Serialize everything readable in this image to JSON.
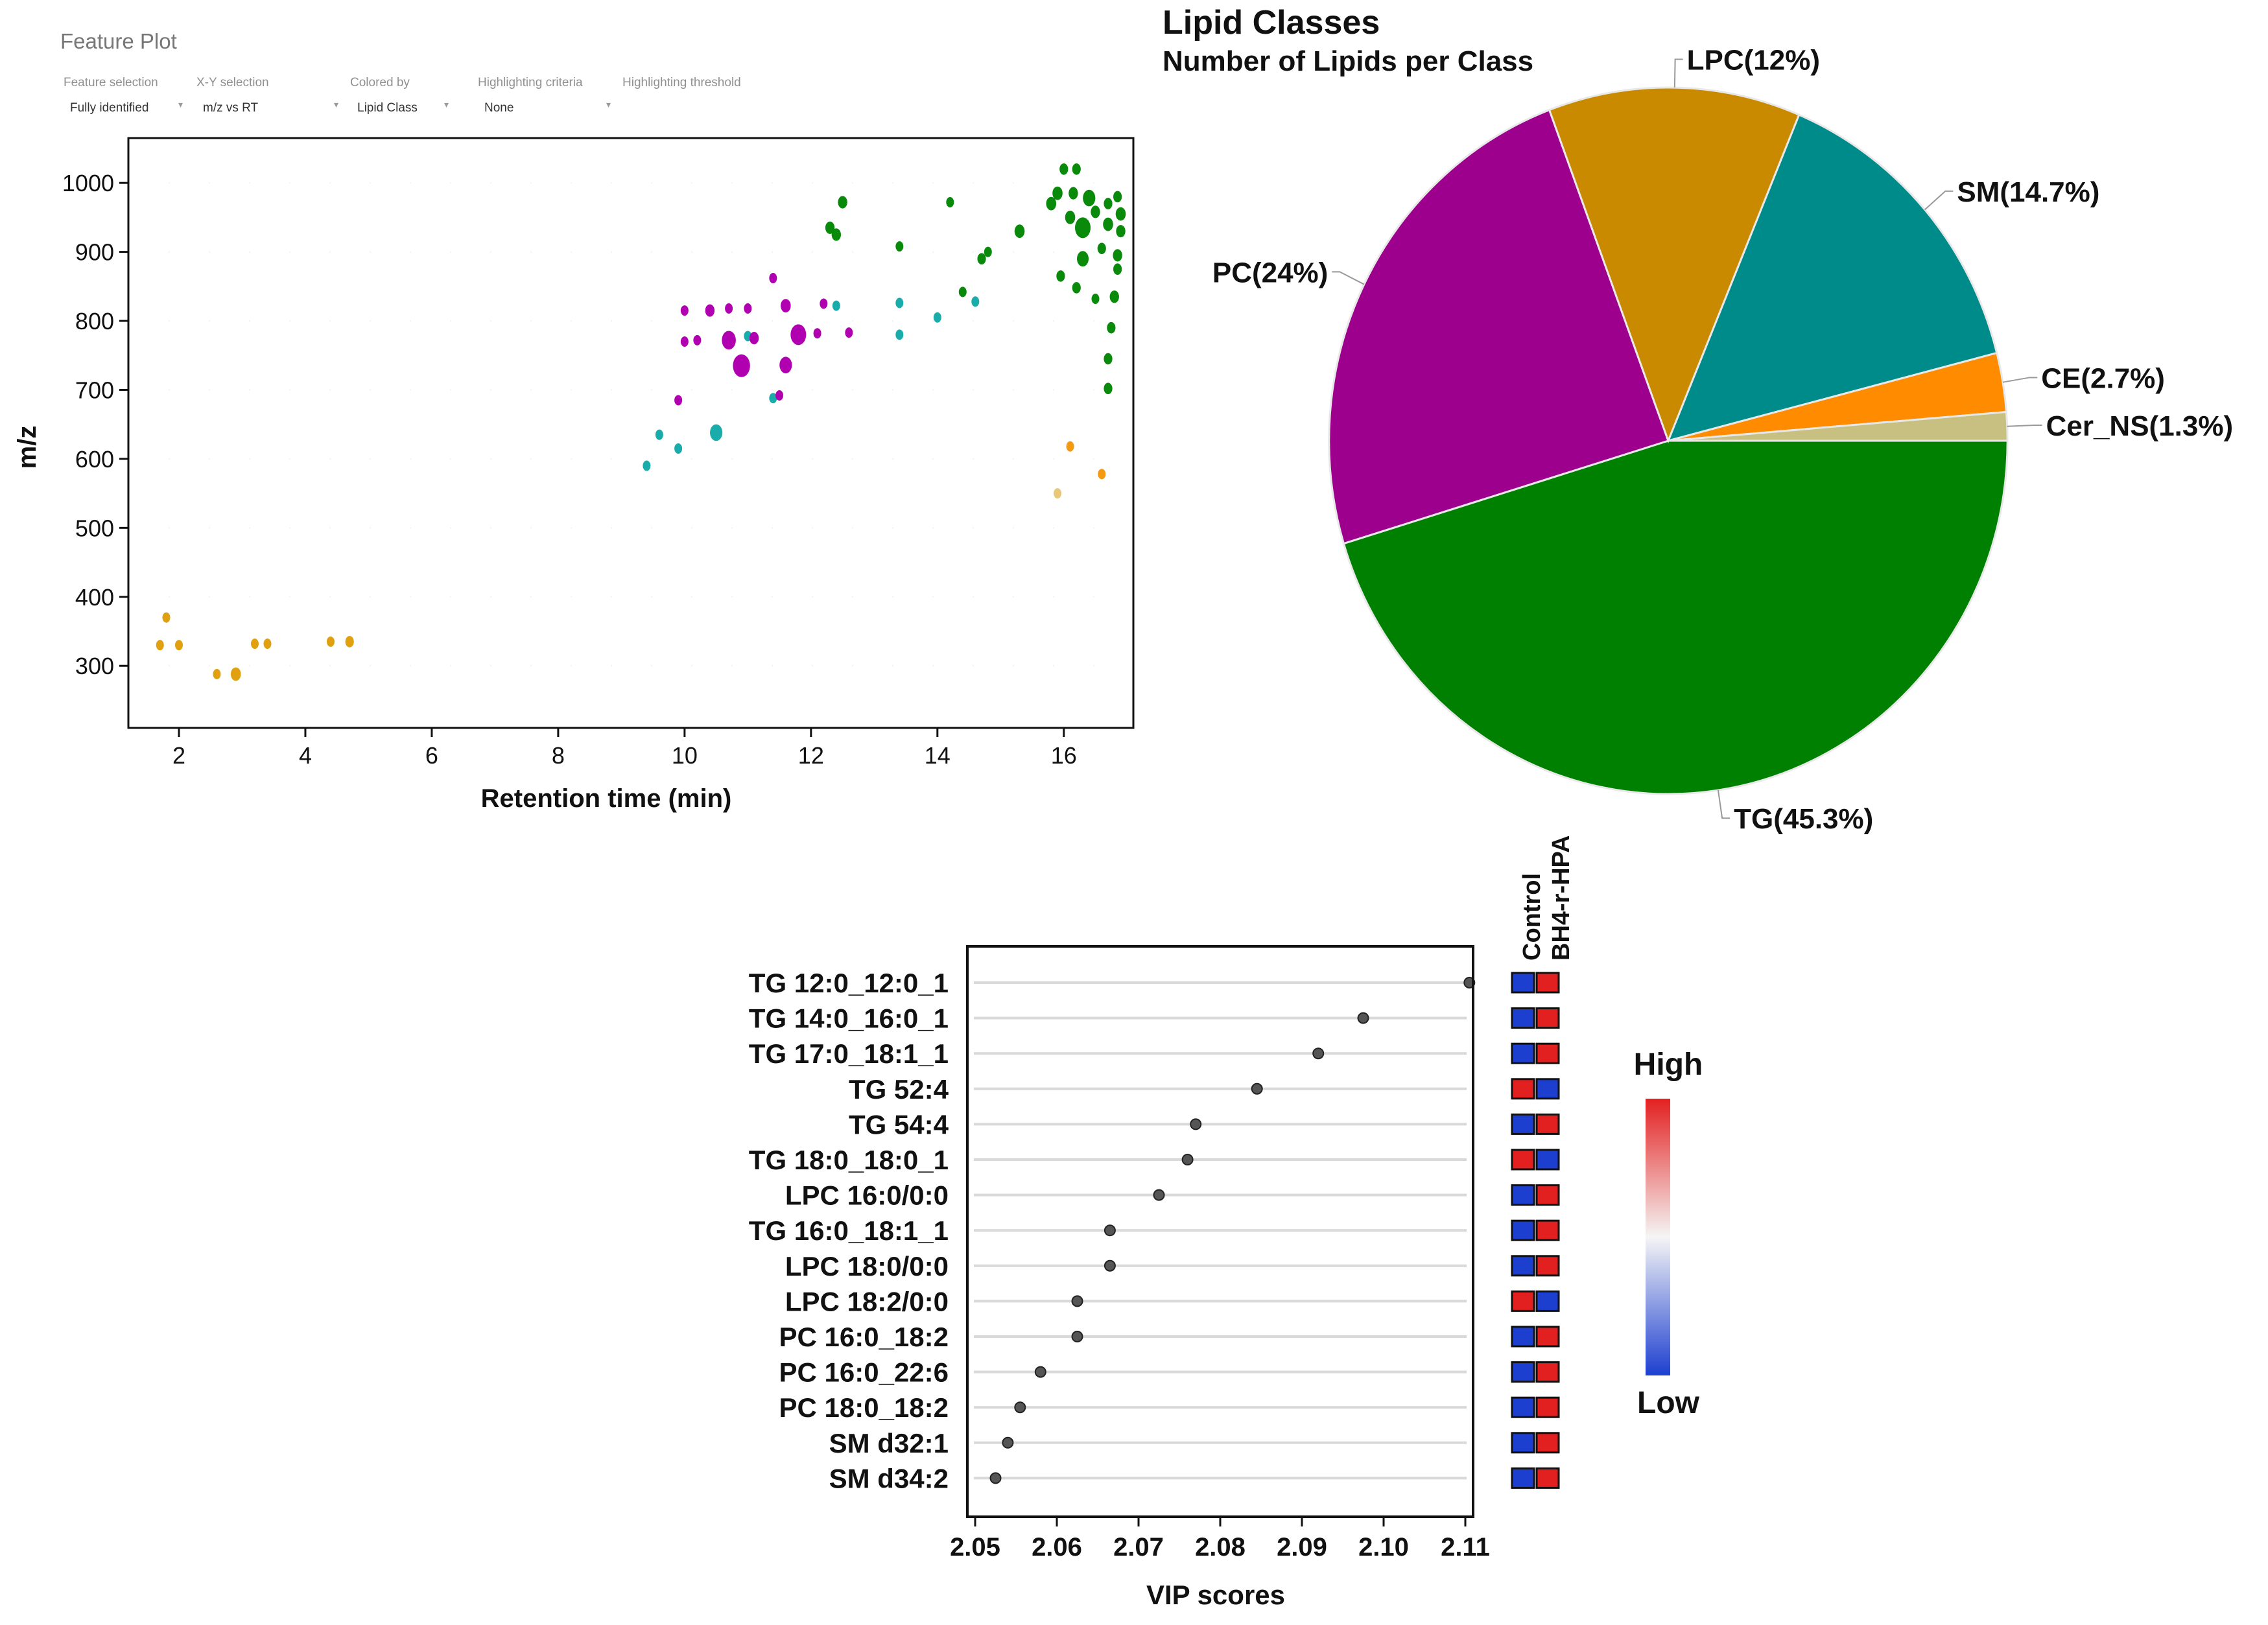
{
  "feature_plot": {
    "title": "Feature Plot",
    "controls": [
      {
        "label": "Feature selection",
        "value": "Fully identified"
      },
      {
        "label": "X-Y selection",
        "value": "m/z vs RT"
      },
      {
        "label": "Colored by",
        "value": "Lipid Class"
      },
      {
        "label": "Highlighting criteria",
        "value": "None"
      },
      {
        "label": "Highlighting threshold",
        "value": ""
      }
    ]
  },
  "chart_data": [
    {
      "type": "scatter",
      "title": "Feature Plot",
      "xlabel": "Retention time (min)",
      "ylabel": "m/z",
      "xlim": [
        1.2,
        17.1
      ],
      "ylim": [
        210,
        1065
      ],
      "xticks": [
        2,
        4,
        6,
        8,
        10,
        12,
        14,
        16
      ],
      "yticks": [
        300,
        400,
        500,
        600,
        700,
        800,
        900,
        1000
      ],
      "color_key": "Lipid Class",
      "class_colors": {
        "TG": "#0a8a0a",
        "PC": "#b000b0",
        "SM": "#1aabab",
        "LPC": "#e0a010",
        "CE": "#f59a10",
        "Cer_NS": "#e8c878"
      },
      "points": [
        {
          "x": 1.8,
          "y": 370,
          "c": "LPC",
          "s": 1
        },
        {
          "x": 1.7,
          "y": 330,
          "c": "LPC",
          "s": 1
        },
        {
          "x": 2.0,
          "y": 330,
          "c": "LPC",
          "s": 1
        },
        {
          "x": 2.6,
          "y": 288,
          "c": "LPC",
          "s": 1
        },
        {
          "x": 2.9,
          "y": 288,
          "c": "LPC",
          "s": 1.3
        },
        {
          "x": 3.2,
          "y": 332,
          "c": "LPC",
          "s": 1
        },
        {
          "x": 3.4,
          "y": 332,
          "c": "LPC",
          "s": 1
        },
        {
          "x": 4.4,
          "y": 335,
          "c": "LPC",
          "s": 1
        },
        {
          "x": 4.7,
          "y": 335,
          "c": "LPC",
          "s": 1.1
        },
        {
          "x": 9.4,
          "y": 590,
          "c": "SM",
          "s": 1
        },
        {
          "x": 9.6,
          "y": 635,
          "c": "SM",
          "s": 1
        },
        {
          "x": 9.9,
          "y": 615,
          "c": "SM",
          "s": 1
        },
        {
          "x": 10.5,
          "y": 638,
          "c": "SM",
          "s": 1.6
        },
        {
          "x": 11.0,
          "y": 778,
          "c": "SM",
          "s": 1
        },
        {
          "x": 11.4,
          "y": 688,
          "c": "SM",
          "s": 1
        },
        {
          "x": 12.4,
          "y": 822,
          "c": "SM",
          "s": 1
        },
        {
          "x": 13.4,
          "y": 826,
          "c": "SM",
          "s": 1
        },
        {
          "x": 13.4,
          "y": 780,
          "c": "SM",
          "s": 1
        },
        {
          "x": 14.0,
          "y": 805,
          "c": "SM",
          "s": 1
        },
        {
          "x": 14.6,
          "y": 828,
          "c": "SM",
          "s": 1
        },
        {
          "x": 9.9,
          "y": 685,
          "c": "PC",
          "s": 1
        },
        {
          "x": 10.0,
          "y": 815,
          "c": "PC",
          "s": 1
        },
        {
          "x": 10.0,
          "y": 770,
          "c": "PC",
          "s": 1
        },
        {
          "x": 10.2,
          "y": 772,
          "c": "PC",
          "s": 1
        },
        {
          "x": 10.4,
          "y": 815,
          "c": "PC",
          "s": 1.2
        },
        {
          "x": 10.7,
          "y": 818,
          "c": "PC",
          "s": 1
        },
        {
          "x": 10.7,
          "y": 772,
          "c": "PC",
          "s": 1.8
        },
        {
          "x": 10.9,
          "y": 735,
          "c": "PC",
          "s": 2.2
        },
        {
          "x": 11.0,
          "y": 818,
          "c": "PC",
          "s": 1
        },
        {
          "x": 11.1,
          "y": 775,
          "c": "PC",
          "s": 1.2
        },
        {
          "x": 11.4,
          "y": 862,
          "c": "PC",
          "s": 1
        },
        {
          "x": 11.5,
          "y": 692,
          "c": "PC",
          "s": 1
        },
        {
          "x": 11.6,
          "y": 822,
          "c": "PC",
          "s": 1.3
        },
        {
          "x": 11.6,
          "y": 736,
          "c": "PC",
          "s": 1.6
        },
        {
          "x": 11.8,
          "y": 780,
          "c": "PC",
          "s": 2
        },
        {
          "x": 12.1,
          "y": 782,
          "c": "PC",
          "s": 1
        },
        {
          "x": 12.2,
          "y": 825,
          "c": "PC",
          "s": 1
        },
        {
          "x": 12.6,
          "y": 783,
          "c": "PC",
          "s": 1
        },
        {
          "x": 12.3,
          "y": 935,
          "c": "TG",
          "s": 1.2
        },
        {
          "x": 12.4,
          "y": 925,
          "c": "TG",
          "s": 1.2
        },
        {
          "x": 12.5,
          "y": 972,
          "c": "TG",
          "s": 1.2
        },
        {
          "x": 13.4,
          "y": 908,
          "c": "TG",
          "s": 1
        },
        {
          "x": 14.2,
          "y": 972,
          "c": "TG",
          "s": 1
        },
        {
          "x": 14.4,
          "y": 842,
          "c": "TG",
          "s": 1
        },
        {
          "x": 14.7,
          "y": 890,
          "c": "TG",
          "s": 1.1
        },
        {
          "x": 14.8,
          "y": 900,
          "c": "TG",
          "s": 1
        },
        {
          "x": 15.3,
          "y": 930,
          "c": "TG",
          "s": 1.3
        },
        {
          "x": 15.8,
          "y": 970,
          "c": "TG",
          "s": 1.3
        },
        {
          "x": 15.9,
          "y": 985,
          "c": "TG",
          "s": 1.3
        },
        {
          "x": 15.95,
          "y": 865,
          "c": "TG",
          "s": 1.1
        },
        {
          "x": 16.0,
          "y": 1020,
          "c": "TG",
          "s": 1.1
        },
        {
          "x": 16.1,
          "y": 950,
          "c": "TG",
          "s": 1.3
        },
        {
          "x": 16.15,
          "y": 985,
          "c": "TG",
          "s": 1.2
        },
        {
          "x": 16.2,
          "y": 1020,
          "c": "TG",
          "s": 1.1
        },
        {
          "x": 16.2,
          "y": 848,
          "c": "TG",
          "s": 1.1
        },
        {
          "x": 16.3,
          "y": 935,
          "c": "TG",
          "s": 2
        },
        {
          "x": 16.3,
          "y": 890,
          "c": "TG",
          "s": 1.5
        },
        {
          "x": 16.4,
          "y": 978,
          "c": "TG",
          "s": 1.6
        },
        {
          "x": 16.5,
          "y": 832,
          "c": "TG",
          "s": 1
        },
        {
          "x": 16.5,
          "y": 958,
          "c": "TG",
          "s": 1.2
        },
        {
          "x": 16.6,
          "y": 905,
          "c": "TG",
          "s": 1.1
        },
        {
          "x": 16.7,
          "y": 970,
          "c": "TG",
          "s": 1.1
        },
        {
          "x": 16.7,
          "y": 940,
          "c": "TG",
          "s": 1.3
        },
        {
          "x": 16.7,
          "y": 745,
          "c": "TG",
          "s": 1.1
        },
        {
          "x": 16.7,
          "y": 702,
          "c": "TG",
          "s": 1.1
        },
        {
          "x": 16.75,
          "y": 790,
          "c": "TG",
          "s": 1.1
        },
        {
          "x": 16.8,
          "y": 835,
          "c": "TG",
          "s": 1.2
        },
        {
          "x": 16.85,
          "y": 980,
          "c": "TG",
          "s": 1.1
        },
        {
          "x": 16.85,
          "y": 895,
          "c": "TG",
          "s": 1.2
        },
        {
          "x": 16.85,
          "y": 875,
          "c": "TG",
          "s": 1.1
        },
        {
          "x": 16.9,
          "y": 955,
          "c": "TG",
          "s": 1.3
        },
        {
          "x": 16.9,
          "y": 930,
          "c": "TG",
          "s": 1.2
        },
        {
          "x": 16.1,
          "y": 618,
          "c": "CE",
          "s": 1
        },
        {
          "x": 16.6,
          "y": 578,
          "c": "CE",
          "s": 1
        },
        {
          "x": 15.9,
          "y": 550,
          "c": "Cer_NS",
          "s": 1
        }
      ]
    },
    {
      "type": "pie",
      "title": "Lipid Classes",
      "subtitle": "Number of Lipids per Class",
      "slices": [
        {
          "name": "TG",
          "value": 45.3,
          "label": "TG(45.3%)",
          "color": "#008000"
        },
        {
          "name": "PC",
          "value": 24,
          "label": "PC(24%)",
          "color": "#9c008c"
        },
        {
          "name": "LPC",
          "value": 12,
          "label": "LPC(12%)",
          "color": "#c98a00"
        },
        {
          "name": "SM",
          "value": 14.7,
          "label": "SM(14.7%)",
          "color": "#008b8b"
        },
        {
          "name": "CE",
          "value": 2.7,
          "label": "CE(2.7%)",
          "color": "#ff8c00"
        },
        {
          "name": "Cer_NS",
          "value": 1.3,
          "label": "Cer_NS(1.3%)",
          "color": "#c8c080"
        }
      ]
    },
    {
      "type": "scatter",
      "title": "",
      "xlabel": "VIP scores",
      "ylabel": "",
      "xlim": [
        2.05,
        2.11
      ],
      "xticks": [
        "2.05",
        "2.06",
        "2.07",
        "2.08",
        "2.09",
        "2.10",
        "2.11"
      ],
      "groups": [
        "Control",
        "BH4-r-HPA"
      ],
      "legend": {
        "high": "High",
        "low": "Low",
        "high_color": "#e32020",
        "low_color": "#1d3fd0"
      },
      "features": [
        {
          "name": "TG 12:0_12:0_1",
          "vip": 2.1105,
          "control": "low",
          "treated": "high"
        },
        {
          "name": "TG 14:0_16:0_1",
          "vip": 2.0975,
          "control": "low",
          "treated": "high"
        },
        {
          "name": "TG 17:0_18:1_1",
          "vip": 2.092,
          "control": "low",
          "treated": "high"
        },
        {
          "name": "TG 52:4",
          "vip": 2.0845,
          "control": "high",
          "treated": "low"
        },
        {
          "name": "TG 54:4",
          "vip": 2.077,
          "control": "low",
          "treated": "high"
        },
        {
          "name": "TG 18:0_18:0_1",
          "vip": 2.076,
          "control": "high",
          "treated": "low"
        },
        {
          "name": "LPC 16:0/0:0",
          "vip": 2.0725,
          "control": "low",
          "treated": "high"
        },
        {
          "name": "TG 16:0_18:1_1",
          "vip": 2.0665,
          "control": "low",
          "treated": "high"
        },
        {
          "name": "LPC 18:0/0:0",
          "vip": 2.0665,
          "control": "low",
          "treated": "high"
        },
        {
          "name": "LPC 18:2/0:0",
          "vip": 2.0625,
          "control": "high",
          "treated": "low"
        },
        {
          "name": "PC 16:0_18:2",
          "vip": 2.0625,
          "control": "low",
          "treated": "high"
        },
        {
          "name": "PC 16:0_22:6",
          "vip": 2.058,
          "control": "low",
          "treated": "high"
        },
        {
          "name": "PC 18:0_18:2",
          "vip": 2.0555,
          "control": "low",
          "treated": "high"
        },
        {
          "name": "SM d32:1",
          "vip": 2.054,
          "control": "low",
          "treated": "high"
        },
        {
          "name": "SM d34:2",
          "vip": 2.0525,
          "control": "low",
          "treated": "high"
        }
      ]
    }
  ]
}
